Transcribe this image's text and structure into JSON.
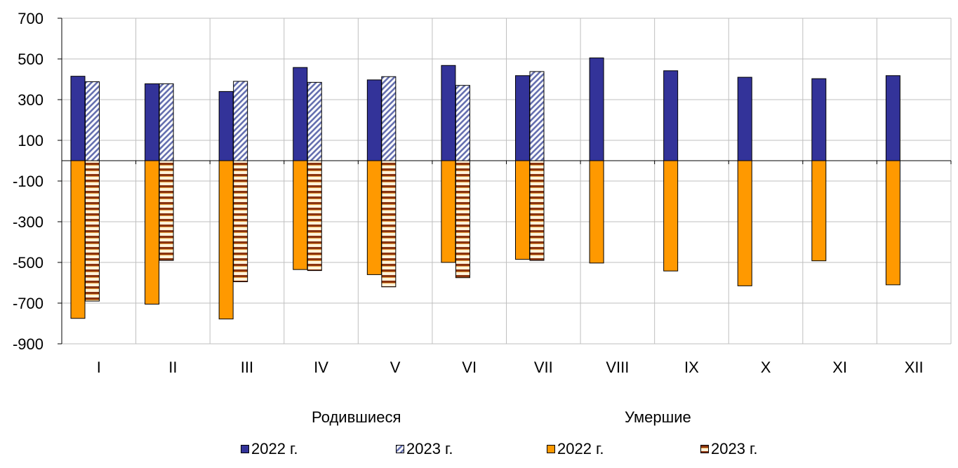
{
  "chart_data": {
    "type": "bar",
    "categories": [
      "I",
      "II",
      "III",
      "IV",
      "V",
      "VI",
      "VII",
      "VIII",
      "IX",
      "X",
      "XI",
      "XII"
    ],
    "ylim": [
      -900,
      700
    ],
    "yticks": [
      700,
      500,
      300,
      100,
      -100,
      -300,
      -500,
      -700,
      -900
    ],
    "grid": true,
    "group_labels": {
      "births": "Родившиеся",
      "deaths": "Умершие"
    },
    "legend_placement": "bottom",
    "series": [
      {
        "name": "2022 г.",
        "group": "births",
        "color": "#333399",
        "pattern": "solid",
        "values": [
          415,
          378,
          340,
          458,
          397,
          468,
          418,
          505,
          442,
          410,
          403,
          418
        ]
      },
      {
        "name": "2023 г.",
        "group": "births",
        "color": "#333399",
        "pattern": "diagonal",
        "values": [
          388,
          378,
          390,
          385,
          413,
          370,
          438,
          null,
          null,
          null,
          null,
          null
        ]
      },
      {
        "name": "2022 г.",
        "group": "deaths",
        "color": "#FF9900",
        "pattern": "solid",
        "values": [
          -775,
          -705,
          -778,
          -535,
          -560,
          -500,
          -485,
          -503,
          -542,
          -615,
          -492,
          -610
        ]
      },
      {
        "name": "2023 г.",
        "group": "deaths",
        "color": "#993300",
        "pattern": "horizontal",
        "values": [
          -690,
          -490,
          -595,
          -540,
          -620,
          -575,
          -490,
          null,
          null,
          null,
          null,
          null
        ]
      }
    ]
  }
}
